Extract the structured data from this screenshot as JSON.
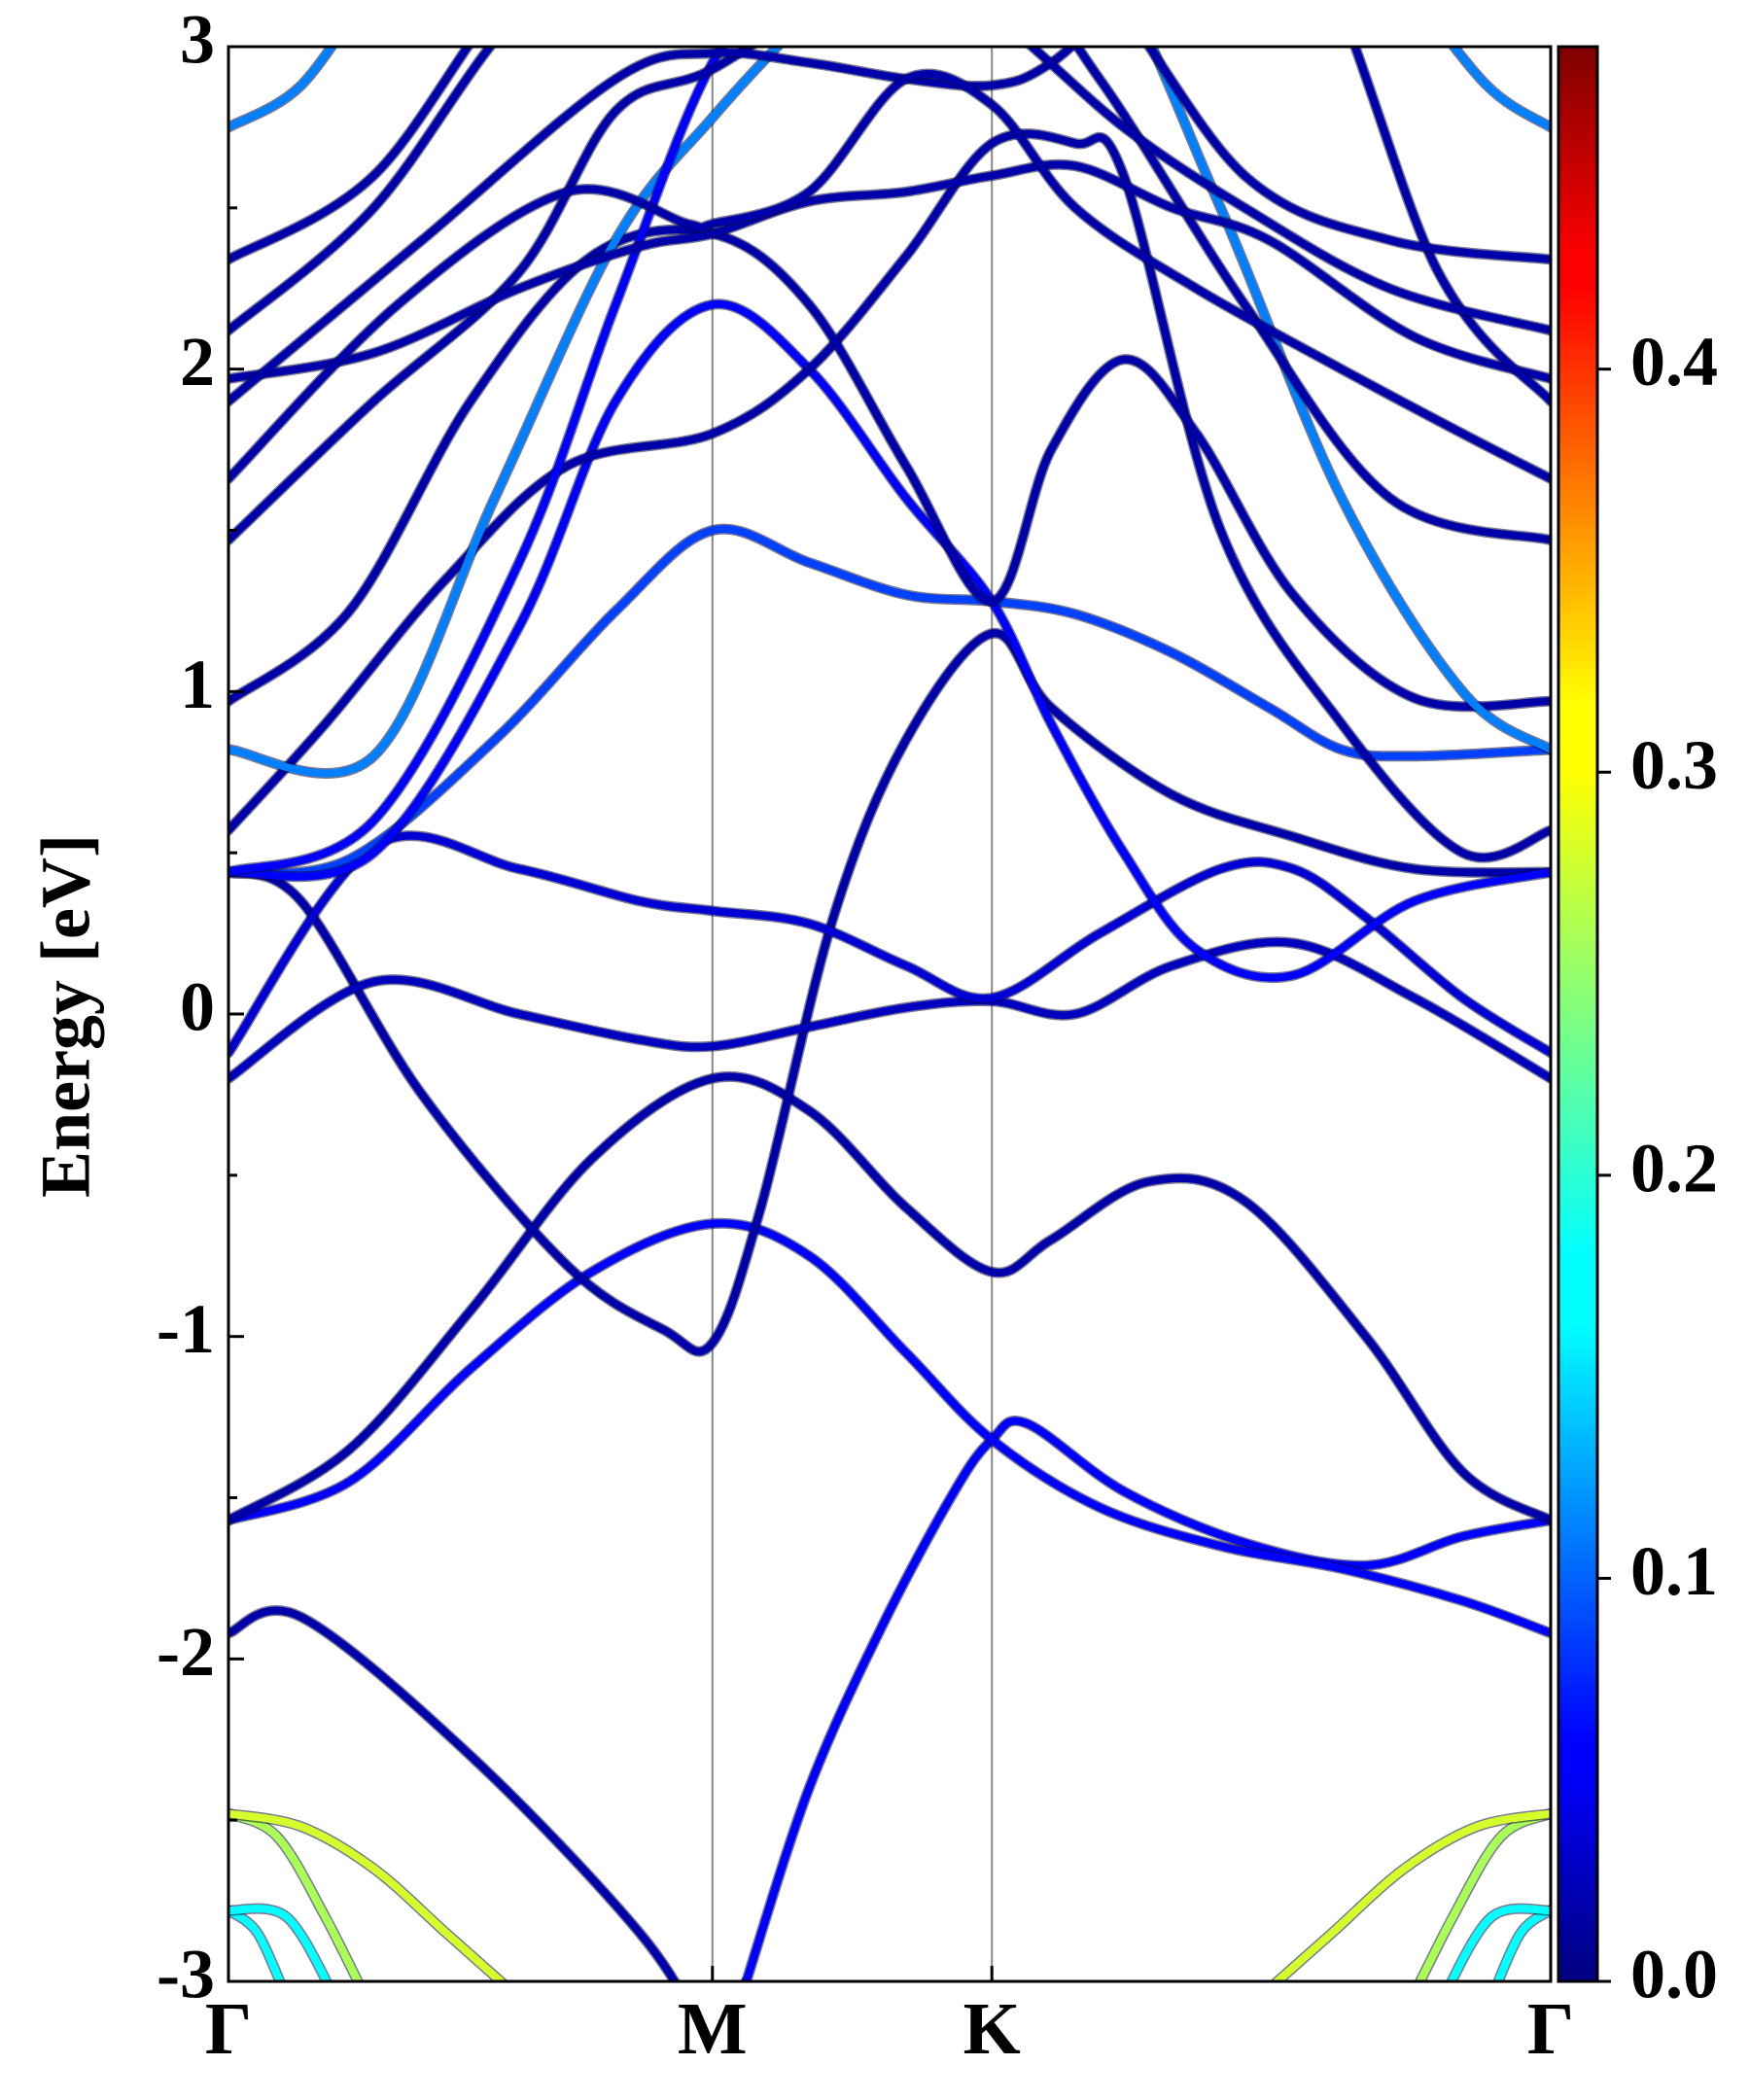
{
  "chart_data": {
    "type": "line",
    "subtype": "fat-band structure",
    "ylabel": "Energy [eV]",
    "xlabel": "",
    "ylim": [
      -3,
      3
    ],
    "y_ticks": [
      "3",
      "2",
      "1",
      "0",
      "-1",
      "-2",
      "-3"
    ],
    "y_tick_values": [
      3,
      2,
      1,
      0,
      -1,
      -2,
      -3
    ],
    "x_path": [
      {
        "label": "Γ",
        "k": 0.0
      },
      {
        "label": "M",
        "k": 1.0
      },
      {
        "label": "K",
        "k": 1.5774
      },
      {
        "label": "Γ",
        "k": 2.7321
      }
    ],
    "grid": "vertical lines at high-symmetry points",
    "colorbar": {
      "colormap": "jet",
      "range": [
        0.0,
        0.48
      ],
      "tick_labels": [
        "0.0",
        "0.1",
        "0.2",
        "0.3",
        "0.4"
      ],
      "tick_values": [
        0.0,
        0.1,
        0.2,
        0.3,
        0.4
      ]
    },
    "bands": [
      {
        "k": [
          0,
          0.15,
          0.5,
          0.85,
          1.0,
          1.15,
          1.3,
          1.45,
          1.5774,
          1.85,
          2.2,
          2.5,
          2.7321
        ],
        "e": [
          -1.92,
          -1.87,
          -2.3,
          -2.85,
          -3.2,
          -3.5,
          -3.5,
          -3.5,
          -3.5,
          -3.5,
          -3.5,
          -3.5,
          -3.5
        ],
        "w": 0.02
      },
      {
        "k": [
          0,
          0.3,
          0.6,
          0.85,
          1.0,
          1.07
        ],
        "e": [
          -3.5,
          -3.5,
          -3.5,
          -3.5,
          -3.3,
          -3.0
        ],
        "w": 0.06
      },
      {
        "k": [
          1.07,
          1.2,
          1.35,
          1.5,
          1.5774,
          1.65,
          1.85,
          2.1,
          2.35,
          2.55,
          2.7321
        ],
        "e": [
          -3.0,
          -2.4,
          -1.9,
          -1.48,
          -1.32,
          -1.27,
          -1.48,
          -1.64,
          -1.71,
          -1.62,
          -1.57
        ],
        "w": 0.06
      },
      {
        "k": [
          0,
          0.25,
          0.5,
          0.75,
          1.0,
          1.2,
          1.4,
          1.5774,
          1.8,
          2.05,
          2.3,
          2.55,
          2.7321
        ],
        "e": [
          -1.57,
          -1.45,
          -1.1,
          -0.8,
          -0.65,
          -0.75,
          -1.05,
          -1.32,
          -1.53,
          -1.65,
          -1.72,
          -1.82,
          -1.92
        ],
        "w": 0.06
      },
      {
        "k": [
          0,
          0.25,
          0.5,
          0.75,
          1.0,
          1.2,
          1.4,
          1.5774,
          1.7,
          1.9,
          2.1,
          2.35,
          2.55,
          2.7321
        ],
        "e": [
          -1.57,
          -1.35,
          -0.92,
          -0.45,
          -0.2,
          -0.3,
          -0.6,
          -0.8,
          -0.7,
          -0.52,
          -0.58,
          -1.0,
          -1.42,
          -1.57
        ],
        "w": 0.02
      },
      {
        "k": [
          0,
          0.15,
          0.4,
          0.7,
          0.9,
          1.0,
          1.1,
          1.25,
          1.4,
          1.5774,
          1.7,
          1.95,
          2.2,
          2.45,
          2.7321
        ],
        "e": [
          0.44,
          0.35,
          -0.25,
          -0.78,
          -0.98,
          -1.02,
          -0.6,
          0.3,
          0.85,
          1.18,
          0.95,
          0.68,
          0.55,
          0.45,
          0.44
        ],
        "w": 0.02
      },
      {
        "k": [
          0,
          0.3,
          0.6,
          0.85,
          1.0,
          1.2,
          1.4,
          1.5774,
          1.75,
          1.95,
          2.2,
          2.45,
          2.7321
        ],
        "e": [
          -0.2,
          0.1,
          0.0,
          -0.08,
          -0.1,
          -0.04,
          0.02,
          0.04,
          0.0,
          0.15,
          0.22,
          0.05,
          -0.2
        ],
        "w": 0.03
      },
      {
        "k": [
          0,
          0.3,
          0.6,
          0.85,
          1.0,
          1.2,
          1.4,
          1.5774,
          1.8,
          2.05,
          2.2,
          2.35,
          2.55,
          2.7321
        ],
        "e": [
          -0.12,
          0.52,
          0.45,
          0.35,
          0.32,
          0.28,
          0.15,
          0.05,
          0.25,
          0.45,
          0.45,
          0.3,
          0.05,
          -0.12
        ],
        "w": 0.04
      },
      {
        "k": [
          0,
          0.25,
          0.55,
          0.8,
          1.0,
          1.2,
          1.4,
          1.5774,
          1.75,
          1.95,
          2.15,
          2.3,
          2.45,
          2.7321
        ],
        "e": [
          0.44,
          0.48,
          0.85,
          1.25,
          1.5,
          1.4,
          1.3,
          1.28,
          1.24,
          1.12,
          0.95,
          0.82,
          0.8,
          0.82
        ],
        "w": 0.09
      },
      {
        "k": [
          0,
          0.3,
          0.6,
          0.8,
          1.0,
          1.2,
          1.4,
          1.5774,
          1.7,
          1.85,
          2.0,
          2.2,
          2.45,
          2.7321
        ],
        "e": [
          0.44,
          0.5,
          1.2,
          1.9,
          2.2,
          2.0,
          1.6,
          1.28,
          0.9,
          0.5,
          0.2,
          0.12,
          0.35,
          0.44
        ],
        "w": 0.06
      },
      {
        "k": [
          0,
          0.2,
          0.45,
          0.7,
          1.0,
          1.2,
          1.4,
          1.5774,
          1.75,
          1.85,
          2.05,
          2.3,
          2.55,
          2.7321
        ],
        "e": [
          0.57,
          0.9,
          1.35,
          1.7,
          1.8,
          2.0,
          2.35,
          2.7,
          2.7,
          2.6,
          1.5,
          0.9,
          0.5,
          0.57
        ],
        "w": 0.02
      },
      {
        "k": [
          0,
          0.25,
          0.5,
          0.75,
          1.0,
          1.2,
          1.4,
          1.5774,
          1.7,
          1.85,
          2.0,
          2.2,
          2.45,
          2.7321
        ],
        "e": [
          0.97,
          1.25,
          1.9,
          2.35,
          2.42,
          2.2,
          1.7,
          1.28,
          1.75,
          2.03,
          1.8,
          1.3,
          0.98,
          0.97
        ],
        "w": 0.02
      },
      {
        "k": [
          0,
          0.3,
          0.55,
          0.8,
          1.0,
          1.2,
          1.35,
          1.5774,
          1.8,
          2.05,
          2.3,
          2.55,
          2.7321
        ],
        "e": [
          0.82,
          0.8,
          1.6,
          2.4,
          2.78,
          3.1,
          3.3,
          3.4,
          3.3,
          2.5,
          1.6,
          1.0,
          0.82
        ],
        "w": 0.12
      },
      {
        "k": [
          0,
          0.3,
          0.6,
          0.8,
          1.0,
          1.2,
          1.4,
          1.5774
        ],
        "e": [
          0.44,
          0.6,
          1.4,
          2.2,
          2.95,
          3.3,
          3.4,
          3.45
        ],
        "w": 0.06
      },
      {
        "k": [
          0,
          0.3,
          0.6,
          0.8,
          1.0,
          1.3,
          1.5774,
          1.8,
          2.1,
          2.4,
          2.7321
        ],
        "e": [
          1.47,
          1.9,
          2.3,
          2.8,
          2.93,
          3.2,
          3.3,
          2.9,
          2.2,
          1.6,
          1.47
        ],
        "w": 0.02
      },
      {
        "k": [
          0,
          0.3,
          0.6,
          0.85,
          1.0,
          1.2,
          1.4,
          1.5774,
          1.75,
          1.95,
          2.15,
          2.45,
          2.7321
        ],
        "e": [
          1.97,
          2.05,
          2.25,
          2.38,
          2.42,
          2.52,
          2.55,
          2.6,
          2.63,
          2.5,
          2.4,
          2.1,
          1.97
        ],
        "w": 0.02
      },
      {
        "k": [
          0,
          0.4,
          0.8,
          1.0,
          1.2,
          1.4,
          1.5774,
          1.7,
          1.9,
          2.2,
          2.5,
          2.7321
        ],
        "e": [
          1.9,
          2.4,
          2.9,
          2.98,
          2.95,
          2.9,
          2.88,
          2.95,
          3.2,
          3.4,
          2.3,
          1.9
        ],
        "w": 0.02
      },
      {
        "k": [
          0,
          0.35,
          0.7,
          0.95,
          1.0,
          1.2,
          1.4,
          1.5774,
          1.75,
          2.0,
          2.3,
          2.55,
          2.7321
        ],
        "e": [
          1.66,
          2.2,
          2.55,
          2.45,
          2.45,
          2.55,
          2.9,
          2.82,
          2.5,
          2.25,
          2.0,
          1.8,
          1.66
        ],
        "w": 0.02
      },
      {
        "k": [
          0,
          0.3,
          0.6,
          0.85,
          1.0,
          1.2,
          1.4,
          1.5774,
          1.85,
          2.1,
          2.4,
          2.7321
        ],
        "e": [
          2.12,
          2.5,
          3.1,
          3.25,
          3.3,
          3.3,
          3.2,
          3.1,
          2.75,
          2.5,
          2.25,
          2.12
        ],
        "w": 0.02
      },
      {
        "k": [
          0,
          0.3,
          0.6,
          0.85,
          1.0,
          1.3,
          1.5774,
          1.8,
          2.1,
          2.4,
          2.7321
        ],
        "e": [
          2.34,
          2.6,
          3.2,
          3.35,
          3.4,
          3.4,
          3.35,
          3.2,
          2.6,
          2.4,
          2.34
        ],
        "w": 0.02
      },
      {
        "k": [
          0,
          0.15,
          0.3
        ],
        "e": [
          2.75,
          2.88,
          3.2
        ],
        "w": 0.12
      },
      {
        "k": [
          2.4321,
          2.6,
          2.7321
        ],
        "e": [
          3.2,
          2.88,
          2.75
        ],
        "w": 0.12
      },
      {
        "k": [
          0,
          0.1,
          0.2,
          0.3
        ],
        "e": [
          -2.48,
          -2.55,
          -2.8,
          -3.1
        ],
        "w": 0.26
      },
      {
        "k": [
          0,
          0.15,
          0.3,
          0.45,
          0.6
        ],
        "e": [
          -2.48,
          -2.52,
          -2.65,
          -2.85,
          -3.05
        ],
        "w": 0.28
      },
      {
        "k": [
          0,
          0.06,
          0.12
        ],
        "e": [
          -2.78,
          -2.85,
          -3.05
        ],
        "w": 0.18
      },
      {
        "k": [
          0,
          0.12,
          0.22
        ],
        "e": [
          -2.78,
          -2.8,
          -3.05
        ],
        "w": 0.18
      },
      {
        "k": [
          2.7321,
          2.63,
          2.53,
          2.43
        ],
        "e": [
          -2.48,
          -2.55,
          -2.8,
          -3.1
        ],
        "w": 0.26
      },
      {
        "k": [
          2.7321,
          2.58,
          2.43,
          2.28,
          2.13
        ],
        "e": [
          -2.48,
          -2.52,
          -2.65,
          -2.85,
          -3.05
        ],
        "w": 0.28
      },
      {
        "k": [
          2.7321,
          2.67,
          2.61
        ],
        "e": [
          -2.78,
          -2.85,
          -3.05
        ],
        "w": 0.18
      },
      {
        "k": [
          2.7321,
          2.61,
          2.51
        ],
        "e": [
          -2.78,
          -2.8,
          -3.05
        ],
        "w": 0.18
      }
    ]
  }
}
